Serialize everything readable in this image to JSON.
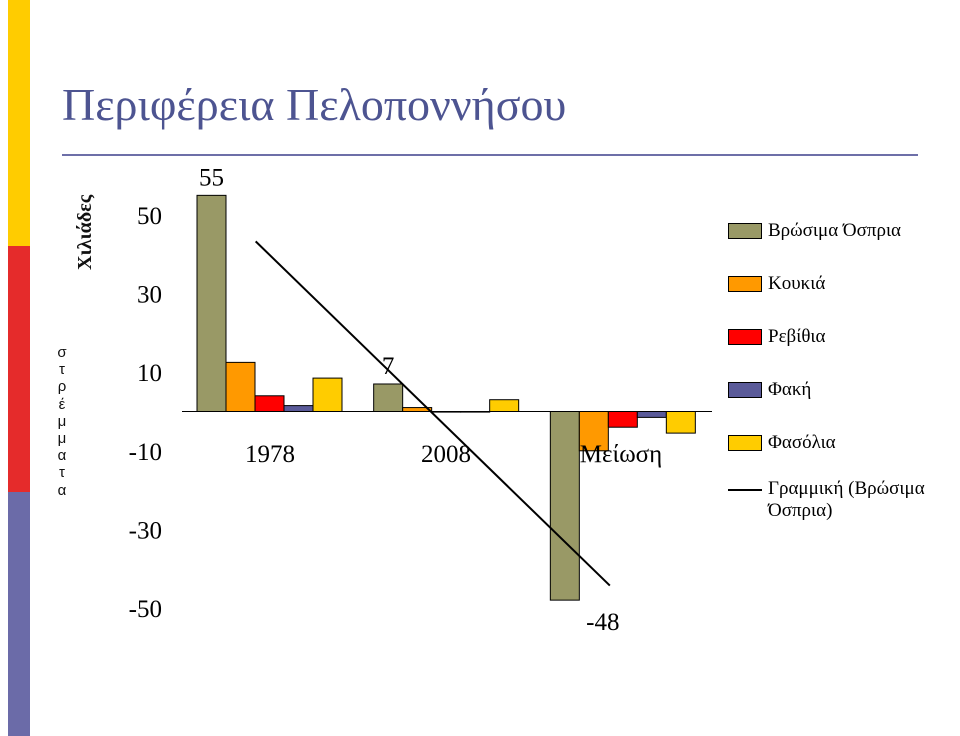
{
  "page": {
    "title": "Περιφέρεια Πελοποννήσου",
    "y_unit": "Χιλιάδες",
    "side_letters": [
      "σ",
      "τ",
      "ρ",
      "έ",
      "μ",
      "μ",
      "α",
      "τ",
      "α"
    ],
    "strip_colors": [
      "#ffcc00",
      "#e52b2b",
      "#6b6ba8"
    ]
  },
  "chart_data": {
    "type": "bar",
    "categories": [
      "1978",
      "2008",
      "Μείωση"
    ],
    "series": [
      {
        "name": "Βρώσιμα Όσπρια",
        "color": "#999966",
        "values": [
          55,
          7,
          -48
        ]
      },
      {
        "name": "Κουκιά",
        "color": "#ff9900",
        "values": [
          12.5,
          1,
          -10
        ]
      },
      {
        "name": "Ρεβίθια",
        "color": "#ff0000",
        "values": [
          4,
          0,
          -4
        ]
      },
      {
        "name": "Φακή",
        "color": "#5a5a99",
        "values": [
          1.5,
          0,
          -1.5
        ]
      },
      {
        "name": "Φασόλια",
        "color": "#ffcc00",
        "values": [
          8.5,
          3,
          -5.5
        ]
      }
    ],
    "data_labels": [
      {
        "series": "Βρώσιμα Όσπρια",
        "category": "1978",
        "text": "55"
      },
      {
        "series": "Βρώσιμα Όσπρια",
        "category": "2008",
        "text": "7"
      },
      {
        "series": "Βρώσιμα Όσπρια",
        "category": "Μείωση",
        "text": "-48"
      }
    ],
    "trendline": {
      "name": "Γραμμική (Βρώσιμα Όσπρια)",
      "series": "Βρώσιμα Όσπρια",
      "color": "#000000"
    },
    "ylabel": "Χιλιάδες",
    "ylim": [
      -50,
      50
    ],
    "yticks": [
      50,
      30,
      10,
      -10,
      -30,
      -50
    ],
    "grid": false,
    "legend_position": "right"
  }
}
